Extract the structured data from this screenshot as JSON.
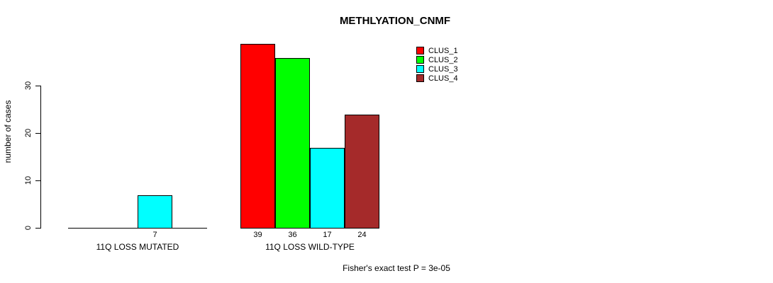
{
  "chart_data": {
    "type": "bar",
    "title": "METHLYATION_CNMF",
    "ylabel": "number of cases",
    "xlabel": "",
    "categories": [
      "11Q LOSS MUTATED",
      "11Q LOSS WILD-TYPE"
    ],
    "series": [
      {
        "name": "CLUS_1",
        "color": "#FF0000",
        "values": [
          0,
          39
        ]
      },
      {
        "name": "CLUS_2",
        "color": "#00FF00",
        "values": [
          0,
          36
        ]
      },
      {
        "name": "CLUS_3",
        "color": "#00FFFF",
        "values": [
          7,
          17
        ]
      },
      {
        "name": "CLUS_4",
        "color": "#A52A2A",
        "values": [
          0,
          24
        ]
      }
    ],
    "bar_value_labels": [
      [
        "",
        "",
        "7",
        ""
      ],
      [
        "39",
        "36",
        "17",
        "24"
      ]
    ],
    "yticks": [
      0,
      10,
      20,
      30
    ],
    "ylim": [
      0,
      40
    ],
    "grid": false,
    "legend_position": "top-right",
    "legend_entries": [
      "CLUS_1",
      "CLUS_2",
      "CLUS_3",
      "CLUS_4"
    ],
    "annotation": "Fisher's exact test P = 3e-05"
  },
  "colors": {
    "clus_1": "#FF0000",
    "clus_2": "#00FF00",
    "clus_3": "#00FFFF",
    "clus_4": "#A52A2A",
    "axis": "#000000",
    "background": "#FFFFFF"
  }
}
